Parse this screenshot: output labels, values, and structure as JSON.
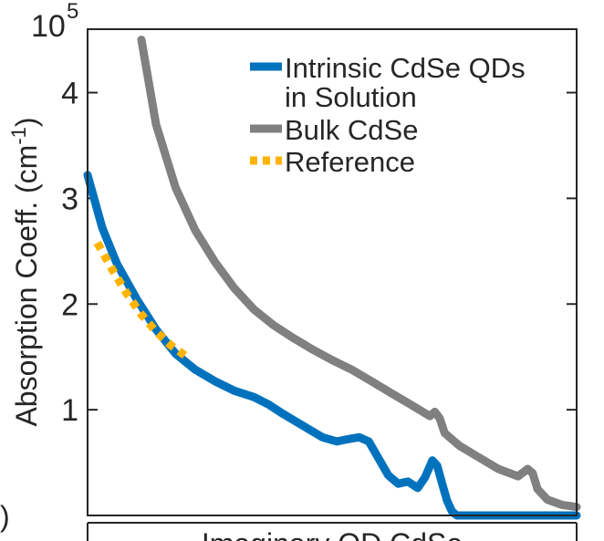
{
  "chart_data": {
    "type": "line",
    "title": "",
    "ylabel": "Absorption Coeff. (cm",
    "ylabel_superscript": "-1",
    "ylabel_close": ")",
    "xlabel": "Imaginary QD CdSe",
    "left_fragment": ")",
    "y_exponent_base": "10",
    "y_exponent_power": "5",
    "ylim": [
      0,
      4.6
    ],
    "yticks": [
      {
        "value": 1,
        "label": "1"
      },
      {
        "value": 2,
        "label": "2"
      },
      {
        "value": 3,
        "label": "3"
      },
      {
        "value": 4,
        "label": "4"
      }
    ],
    "x_units": "normalized position along x-axis (no x tick labels visible)",
    "xlim": [
      0,
      1
    ],
    "grid": false,
    "legend_position": "top-right",
    "series": [
      {
        "name": "Intrinsic CdSe QDs",
        "name_line2": "in Solution",
        "color": "#0072BD",
        "style": "solid",
        "x": [
          0,
          0.03,
          0.06,
          0.1,
          0.14,
          0.18,
          0.22,
          0.26,
          0.3,
          0.34,
          0.37,
          0.4,
          0.44,
          0.48,
          0.51,
          0.53,
          0.555,
          0.575,
          0.6,
          0.615,
          0.635,
          0.655,
          0.675,
          0.69,
          0.705,
          0.715,
          0.725,
          0.735,
          0.745,
          0.755,
          0.76,
          0.78,
          0.85,
          0.95,
          1.0
        ],
        "values": [
          3.22,
          2.72,
          2.38,
          2.05,
          1.76,
          1.53,
          1.38,
          1.27,
          1.18,
          1.12,
          1.05,
          0.96,
          0.85,
          0.74,
          0.7,
          0.72,
          0.74,
          0.7,
          0.5,
          0.38,
          0.3,
          0.32,
          0.26,
          0.36,
          0.52,
          0.47,
          0.3,
          0.14,
          0.04,
          0,
          0,
          0,
          0,
          0,
          0
        ]
      },
      {
        "name": "Bulk CdSe",
        "color": "#808080",
        "style": "solid",
        "x": [
          0.11,
          0.14,
          0.18,
          0.22,
          0.26,
          0.3,
          0.34,
          0.38,
          0.42,
          0.46,
          0.5,
          0.54,
          0.58,
          0.62,
          0.66,
          0.7,
          0.71,
          0.72,
          0.73,
          0.76,
          0.8,
          0.84,
          0.88,
          0.9,
          0.91,
          0.92,
          0.94,
          0.97,
          1.0
        ],
        "values": [
          4.5,
          3.7,
          3.1,
          2.7,
          2.4,
          2.15,
          1.95,
          1.8,
          1.68,
          1.57,
          1.47,
          1.38,
          1.27,
          1.16,
          1.05,
          0.94,
          0.98,
          0.92,
          0.78,
          0.66,
          0.55,
          0.44,
          0.37,
          0.44,
          0.4,
          0.25,
          0.15,
          0.1,
          0.08
        ]
      },
      {
        "name": "Reference",
        "color": "#FFB300",
        "style": "dotted",
        "x": [
          0.02,
          0.05,
          0.08,
          0.11,
          0.14,
          0.17,
          0.2
        ],
        "values": [
          2.58,
          2.33,
          2.1,
          1.9,
          1.74,
          1.61,
          1.51
        ]
      }
    ]
  }
}
